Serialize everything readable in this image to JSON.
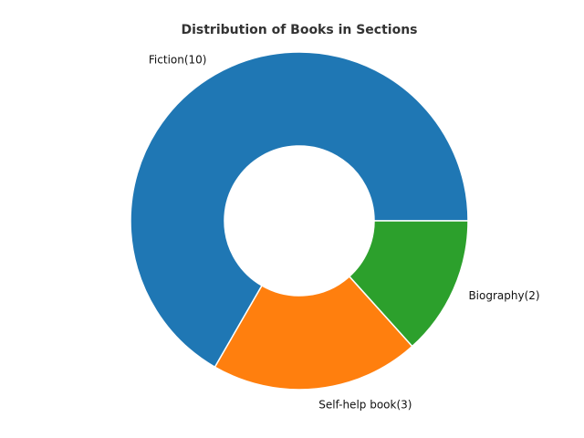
{
  "chart_data": {
    "type": "pie",
    "title": "Distribution of Books in Sections",
    "donut": true,
    "start_angle_deg": 0,
    "direction": "counterclockwise",
    "categories": [
      "Fiction",
      "Self-help book",
      "Biography"
    ],
    "values": [
      10,
      3,
      2
    ],
    "labels": [
      "Fiction(10)",
      "Self-help book(3)",
      "Biography(2)"
    ],
    "colors": [
      "#1f77b4",
      "#ff7f0e",
      "#2ca02c"
    ],
    "edge_color": "#ffffff",
    "legend": "none"
  }
}
